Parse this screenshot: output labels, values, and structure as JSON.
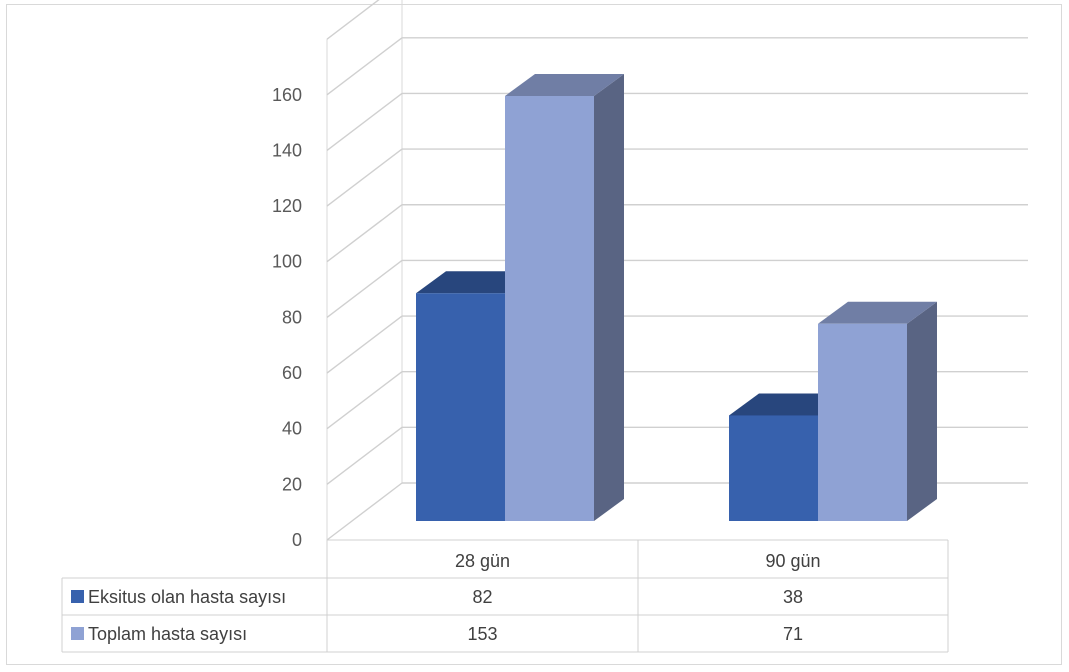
{
  "chart_data": {
    "type": "bar",
    "style": "3d-clustered-column-with-data-table",
    "categories": [
      "28 gün",
      "90 gün"
    ],
    "series": [
      {
        "name": "Eksitus olan hasta sayısı",
        "values": [
          82,
          38
        ],
        "color": "#3761ad"
      },
      {
        "name": "Toplam hasta sayısı",
        "values": [
          153,
          71
        ],
        "color": "#8fa2d4"
      }
    ],
    "ylim": [
      0,
      180
    ],
    "y_ticks": [
      0,
      20,
      40,
      60,
      80,
      100,
      120,
      140,
      160
    ],
    "grid": true,
    "legend": "data-table"
  }
}
